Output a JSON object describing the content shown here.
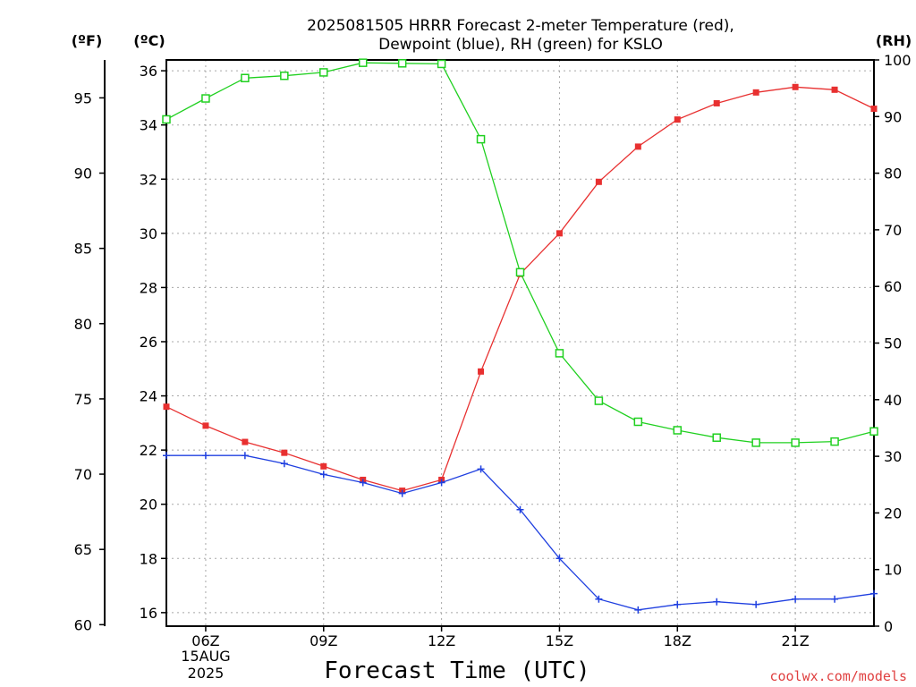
{
  "page": {
    "title_line1": "2025081505 HRRR Forecast 2-meter Temperature (red),",
    "title_line2": "Dewpoint (blue), RH (green) for KSLO",
    "watermark": "coolwx.com/models",
    "date_line1": "15AUG",
    "date_line2": "2025"
  },
  "chart_data": {
    "type": "line",
    "title": "2025081505 HRRR Forecast 2-meter Temperature (red), Dewpoint (blue), RH (green) for KSLO",
    "xlabel": "Forecast Time (UTC)",
    "x_ticks": [
      "06Z",
      "09Z",
      "12Z",
      "15Z",
      "18Z",
      "21Z"
    ],
    "x_tick_hours": [
      6,
      9,
      12,
      15,
      18,
      21
    ],
    "x_range_hours": [
      5,
      23
    ],
    "y_left_celsius": {
      "label": "(ºC)",
      "range": [
        15.5,
        36.4
      ],
      "ticks": [
        16,
        18,
        20,
        22,
        24,
        26,
        28,
        30,
        32,
        34,
        36
      ]
    },
    "y_left_fahrenheit": {
      "label": "(ºF)",
      "ticks": [
        60,
        65,
        70,
        75,
        80,
        85,
        90,
        95
      ]
    },
    "y_right_rh": {
      "label": "(RH)",
      "range": [
        0,
        100
      ],
      "ticks": [
        0,
        10,
        20,
        30,
        40,
        50,
        60,
        70,
        80,
        90,
        100
      ]
    },
    "grid": true,
    "x": [
      5,
      6,
      7,
      8,
      9,
      10,
      11,
      12,
      13,
      14,
      15,
      16,
      17,
      18,
      19,
      20,
      21,
      22,
      23
    ],
    "series": [
      {
        "name": "Temperature",
        "axis": "celsius",
        "color": "#e83030",
        "marker": "filled-square",
        "values": [
          23.6,
          22.9,
          22.3,
          21.9,
          21.4,
          20.9,
          20.5,
          20.9,
          24.9,
          28.5,
          30.0,
          31.9,
          33.2,
          34.2,
          34.8,
          35.2,
          35.4,
          35.3,
          34.6
        ]
      },
      {
        "name": "Dewpoint",
        "axis": "celsius",
        "color": "#2040e0",
        "marker": "plus",
        "values": [
          21.8,
          21.8,
          21.8,
          21.5,
          21.1,
          20.8,
          20.4,
          20.8,
          21.3,
          19.8,
          18.0,
          16.5,
          16.1,
          16.3,
          16.4,
          16.3,
          16.5,
          16.5,
          16.7
        ]
      },
      {
        "name": "RH",
        "axis": "rh",
        "color": "#20d020",
        "marker": "hollow-square",
        "values": [
          89.5,
          93.2,
          96.8,
          97.2,
          97.8,
          99.5,
          99.4,
          99.3,
          86.0,
          62.5,
          48.2,
          39.8,
          36.1,
          34.6,
          33.3,
          32.4,
          32.4,
          32.6,
          34.4
        ]
      }
    ]
  }
}
